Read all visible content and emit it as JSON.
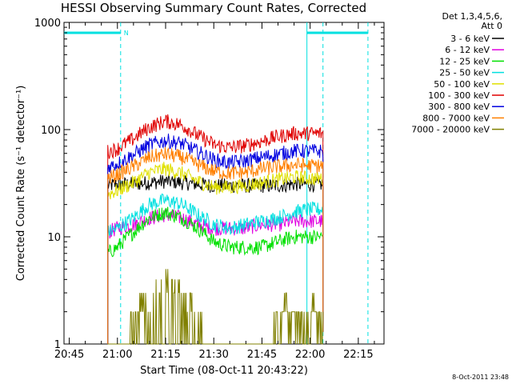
{
  "chart_data": {
    "type": "line",
    "title": "HESSI Observing Summary Count Rates, Corrected",
    "xlabel": "Start Time (08-Oct-11 20:43:22)",
    "ylabel": "Corrected Count Rate (s⁻¹ detector⁻¹)",
    "y_scale": "log",
    "ylim": [
      1,
      1000
    ],
    "xlim": [
      "20:43:22",
      "22:23:00"
    ],
    "x_ticks": [
      "20:45",
      "21:00",
      "21:15",
      "21:30",
      "21:45",
      "22:00",
      "22:15"
    ],
    "y_ticks": [
      "1",
      "10",
      "100",
      "1000"
    ],
    "legend_header": [
      "Det 1,3,4,5,6,",
      "Att 0"
    ],
    "legend_position": "right",
    "footer_date": "8-Oct-2011 23:48",
    "night_marker": "N",
    "x": [
      "20:57",
      "21:00",
      "21:05",
      "21:10",
      "21:15",
      "21:20",
      "21:25",
      "21:30",
      "21:35",
      "21:40",
      "21:45",
      "21:50",
      "21:55",
      "22:00",
      "22:04"
    ],
    "series": [
      {
        "name": "3 - 6 keV",
        "color": "#000000",
        "values": [
          30,
          31,
          31,
          32,
          33,
          32,
          31,
          30,
          30,
          30,
          30,
          30,
          31,
          31,
          31
        ]
      },
      {
        "name": "6 - 12 keV",
        "color": "#e000e0",
        "values": [
          11,
          12,
          13,
          15,
          16,
          15,
          13,
          12,
          12,
          12,
          13,
          13,
          14,
          14,
          14
        ]
      },
      {
        "name": "12 - 25 keV",
        "color": "#00e000",
        "values": [
          7,
          8,
          11,
          15,
          17,
          15,
          12,
          9,
          8,
          8,
          8,
          9,
          10,
          10,
          10
        ]
      },
      {
        "name": "25 - 50 keV",
        "color": "#00e0e0",
        "values": [
          11,
          12,
          15,
          20,
          22,
          20,
          16,
          13,
          12,
          13,
          14,
          15,
          17,
          18,
          18
        ]
      },
      {
        "name": "50 - 100 keV",
        "color": "#e0e000",
        "values": [
          25,
          27,
          32,
          40,
          43,
          39,
          33,
          29,
          29,
          30,
          32,
          34,
          36,
          35,
          35
        ]
      },
      {
        "name": "100 - 300 keV",
        "color": "#e00000",
        "values": [
          62,
          66,
          82,
          105,
          120,
          110,
          88,
          72,
          68,
          71,
          78,
          86,
          92,
          92,
          92
        ]
      },
      {
        "name": "300 - 800 keV",
        "color": "#0000e0",
        "values": [
          45,
          48,
          58,
          72,
          79,
          74,
          62,
          52,
          49,
          51,
          55,
          59,
          63,
          63,
          63
        ]
      },
      {
        "name": "800 - 7000 keV",
        "color": "#ff8000",
        "values": [
          35,
          38,
          45,
          55,
          59,
          55,
          47,
          41,
          39,
          40,
          43,
          45,
          47,
          46,
          46
        ]
      },
      {
        "name": "7000 - 20000 keV",
        "color": "#808000",
        "values": [
          0,
          0,
          2,
          3,
          4,
          3,
          2,
          0,
          0,
          0,
          0,
          2,
          2,
          2,
          2
        ]
      }
    ],
    "grid": false,
    "vertical_lines": [
      {
        "time": "21:01",
        "color": "#00e0e0",
        "style": "dashed"
      },
      {
        "time": "21:59",
        "color": "#00e0e0",
        "style": "solid"
      },
      {
        "time": "22:04",
        "color": "#00e0e0",
        "style": "dashed"
      },
      {
        "time": "22:18",
        "color": "#00e0e0",
        "style": "dashed"
      }
    ],
    "status_bars": [
      {
        "label": "night",
        "start": "20:43:22",
        "end": "21:01",
        "color": "#00e0e0"
      },
      {
        "label": "night",
        "start": "21:59",
        "end": "22:18",
        "color": "#00e0e0"
      }
    ]
  }
}
